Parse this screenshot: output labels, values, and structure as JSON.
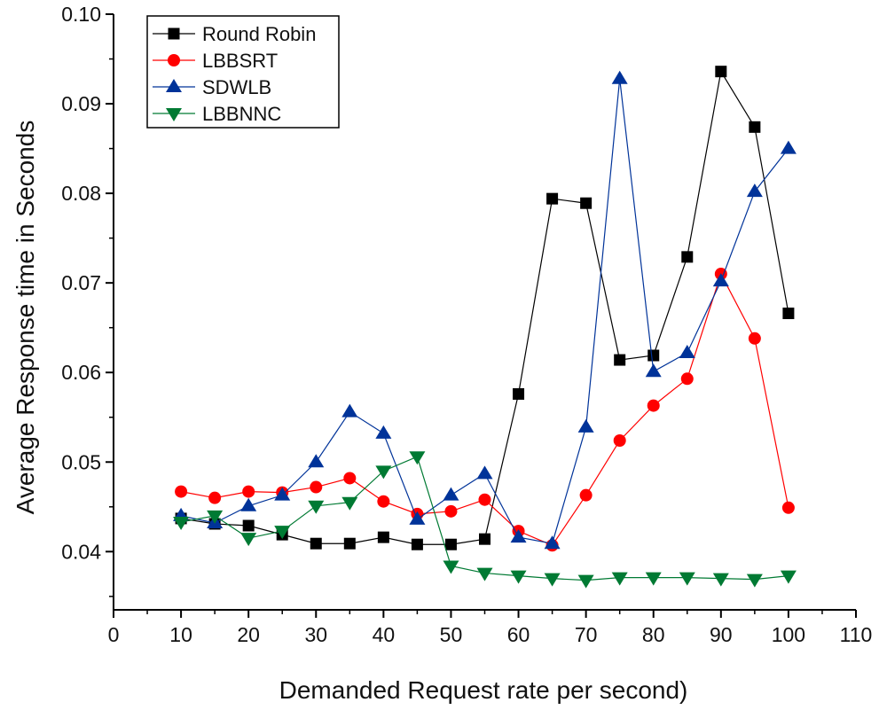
{
  "chart_data": {
    "type": "line",
    "title": "",
    "xlabel": "Demanded Request rate per second)",
    "ylabel": "Average Response time in Seconds",
    "xlim": [
      0,
      110
    ],
    "ylim": [
      0.0335,
      0.1
    ],
    "xticks": [
      0,
      10,
      20,
      30,
      40,
      50,
      60,
      70,
      80,
      90,
      100,
      110
    ],
    "yticks": [
      0.04,
      0.05,
      0.06,
      0.07,
      0.08,
      0.09,
      0.1
    ],
    "xtick_labels": [
      "0",
      "10",
      "20",
      "30",
      "40",
      "50",
      "60",
      "70",
      "80",
      "90",
      "100",
      "110"
    ],
    "ytick_labels": [
      "0.04",
      "0.05",
      "0.06",
      "0.07",
      "0.08",
      "0.09",
      "0.10"
    ],
    "grid": false,
    "legend_position": "top-left",
    "x": [
      10,
      15,
      20,
      25,
      30,
      35,
      40,
      45,
      50,
      55,
      60,
      65,
      70,
      75,
      80,
      85,
      90,
      95,
      100
    ],
    "series": [
      {
        "name": "Round Robin",
        "color": "#000000",
        "marker": "square",
        "values": [
          0.0437,
          0.0431,
          0.0429,
          0.0419,
          0.0409,
          0.0409,
          0.0416,
          0.0408,
          0.0408,
          0.0414,
          0.0576,
          0.0794,
          0.0789,
          0.0614,
          0.0619,
          0.0729,
          0.0936,
          0.0874,
          0.0666
        ]
      },
      {
        "name": "LBBSRT",
        "color": "#ff0000",
        "marker": "circle",
        "values": [
          0.0467,
          0.046,
          0.0467,
          0.0466,
          0.0472,
          0.0482,
          0.0456,
          0.0442,
          0.0445,
          0.0458,
          0.0423,
          0.0407,
          0.0463,
          0.0524,
          0.0563,
          0.0593,
          0.071,
          0.0638,
          0.0449
        ]
      },
      {
        "name": "SDWLB",
        "color": "#003399",
        "marker": "triangle-up",
        "values": [
          0.044,
          0.0432,
          0.0451,
          0.0463,
          0.05,
          0.0556,
          0.0532,
          0.0436,
          0.0463,
          0.0487,
          0.0416,
          0.0409,
          0.0539,
          0.0928,
          0.0601,
          0.0622,
          0.0702,
          0.0802,
          0.085
        ]
      },
      {
        "name": "LBBNNC",
        "color": "#007a33",
        "marker": "triangle-down",
        "values": [
          0.0433,
          0.044,
          0.0415,
          0.0423,
          0.0451,
          0.0455,
          0.049,
          0.0506,
          0.0384,
          0.0376,
          0.0373,
          0.037,
          0.0368,
          0.0371,
          0.0371,
          0.0371,
          0.037,
          0.0369,
          0.0373
        ]
      }
    ]
  }
}
